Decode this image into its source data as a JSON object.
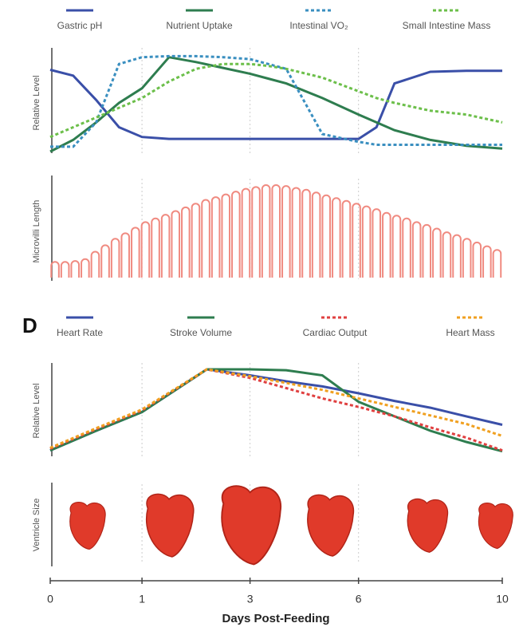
{
  "chart_data": [
    {
      "type": "line",
      "ylabel": "Relative Level",
      "ylim": [
        0,
        1
      ],
      "x": [
        0,
        0.25,
        0.5,
        0.75,
        1,
        1.5,
        2,
        2.5,
        3,
        3.5,
        4,
        5,
        6,
        6.5,
        7,
        8,
        9,
        10
      ],
      "series": [
        {
          "name": "Gastric pH",
          "color": "#3a4fa8",
          "dashed": false,
          "values": [
            0.84,
            0.78,
            0.53,
            0.25,
            0.15,
            0.13,
            0.13,
            0.13,
            0.13,
            0.13,
            0.13,
            0.13,
            0.13,
            0.25,
            0.7,
            0.82,
            0.83,
            0.83
          ]
        },
        {
          "name": "Nutrient Uptake",
          "color": "#2e7d4f",
          "dashed": false,
          "values": [
            0,
            0.12,
            0.3,
            0.5,
            0.65,
            0.97,
            0.92,
            0.86,
            0.8,
            0.75,
            0.7,
            0.55,
            0.38,
            0.3,
            0.22,
            0.12,
            0.06,
            0.03
          ]
        },
        {
          "name": "Intestinal VO₂",
          "color": "#3a8fc0",
          "dashed": true,
          "values": [
            0.05,
            0.05,
            0.3,
            0.9,
            0.97,
            0.98,
            0.98,
            0.97,
            0.95,
            0.9,
            0.85,
            0.18,
            0.1,
            0.07,
            0.07,
            0.07,
            0.07,
            0.07
          ]
        },
        {
          "name": "Small Intestine Mass",
          "color": "#6cbf4a",
          "dashed": true,
          "values": [
            0.15,
            0.25,
            0.35,
            0.45,
            0.55,
            0.72,
            0.85,
            0.9,
            0.9,
            0.88,
            0.85,
            0.76,
            0.62,
            0.55,
            0.5,
            0.42,
            0.38,
            0.3
          ]
        }
      ]
    },
    {
      "type": "bar",
      "ylabel": "Microvilli Length",
      "ylim": [
        0,
        1
      ],
      "color": "#f08a80",
      "values": [
        0.17,
        0.17,
        0.18,
        0.2,
        0.28,
        0.35,
        0.42,
        0.48,
        0.54,
        0.6,
        0.64,
        0.68,
        0.72,
        0.76,
        0.8,
        0.84,
        0.87,
        0.9,
        0.93,
        0.96,
        0.98,
        1.0,
        1.0,
        0.99,
        0.97,
        0.95,
        0.92,
        0.89,
        0.86,
        0.83,
        0.8,
        0.77,
        0.74,
        0.7,
        0.67,
        0.64,
        0.6,
        0.57,
        0.53,
        0.49,
        0.46,
        0.42,
        0.38,
        0.34,
        0.3
      ]
    },
    {
      "type": "line",
      "panel_label": "D",
      "ylabel": "Relative Level",
      "ylim": [
        0,
        1
      ],
      "x": [
        0,
        0.5,
        1,
        2.2,
        3,
        4,
        5,
        6,
        7,
        8,
        9,
        10
      ],
      "series": [
        {
          "name": "Heart Rate",
          "color": "#3a4fa8",
          "dashed": false,
          "values": [
            0.05,
            0.28,
            0.5,
            1,
            0.93,
            0.86,
            0.8,
            0.72,
            0.63,
            0.55,
            0.45,
            0.35
          ]
        },
        {
          "name": "Stroke Volume",
          "color": "#2e7d4f",
          "dashed": false,
          "values": [
            0.05,
            0.28,
            0.5,
            1,
            1,
            0.99,
            0.93,
            0.62,
            0.45,
            0.28,
            0.15,
            0.04
          ]
        },
        {
          "name": "Cardiac Output",
          "color": "#e04040",
          "dashed": true,
          "values": [
            0.07,
            0.3,
            0.52,
            1,
            0.9,
            0.78,
            0.66,
            0.56,
            0.45,
            0.32,
            0.2,
            0.05
          ]
        },
        {
          "name": "Heart Mass",
          "color": "#f0a020",
          "dashed": true,
          "values": [
            0.08,
            0.31,
            0.53,
            1,
            0.92,
            0.84,
            0.76,
            0.66,
            0.56,
            0.46,
            0.36,
            0.22
          ]
        }
      ]
    },
    {
      "type": "scatter",
      "ylabel": "Ventricle Size",
      "xlabel": "Days Post-Feeding",
      "color": "#e03a2a",
      "xlim": [
        0,
        10
      ],
      "xticks": [
        0,
        1,
        3,
        6,
        10
      ],
      "grid": true,
      "x": [
        0.4,
        1.5,
        3,
        5.2,
        7.9,
        9.8
      ],
      "sizes": [
        0.6,
        0.8,
        1,
        0.78,
        0.68,
        0.58
      ]
    }
  ]
}
